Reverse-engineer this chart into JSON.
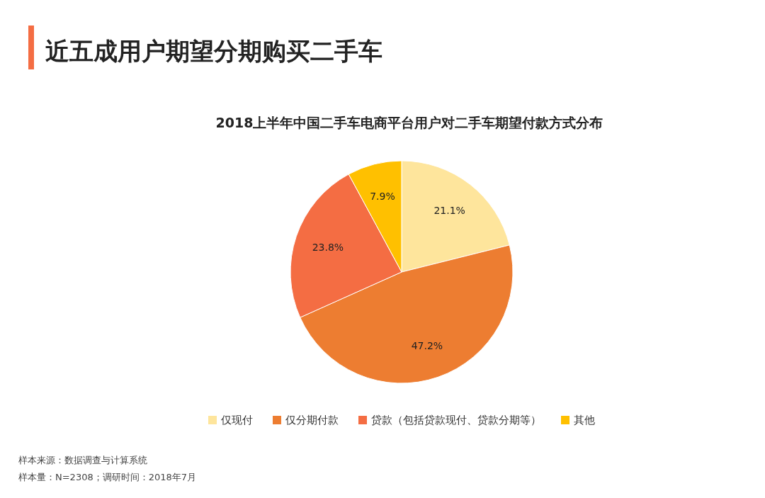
{
  "chart_data": {
    "type": "pie",
    "title": "近五成用户期望分期购买二手车",
    "subtitle": "2018上半年中国二手车电商平台用户对二手车期望付款方式分布",
    "categories": [
      "仅现付",
      "仅分期付款",
      "贷款（包括贷款现付、贷款分期等）",
      "其他"
    ],
    "values": [
      21.1,
      47.2,
      23.8,
      7.9
    ],
    "colors": [
      "#fee59c",
      "#ed7d31",
      "#f46d43",
      "#ffc000"
    ],
    "value_labels": [
      "21.1%",
      "47.2%",
      "23.8%",
      "7.9%"
    ],
    "legend": "bottom",
    "annotations": [
      "样本来源：数据调查与计算系统",
      "样本量：N=2308；调研时间：2018年7月"
    ]
  }
}
